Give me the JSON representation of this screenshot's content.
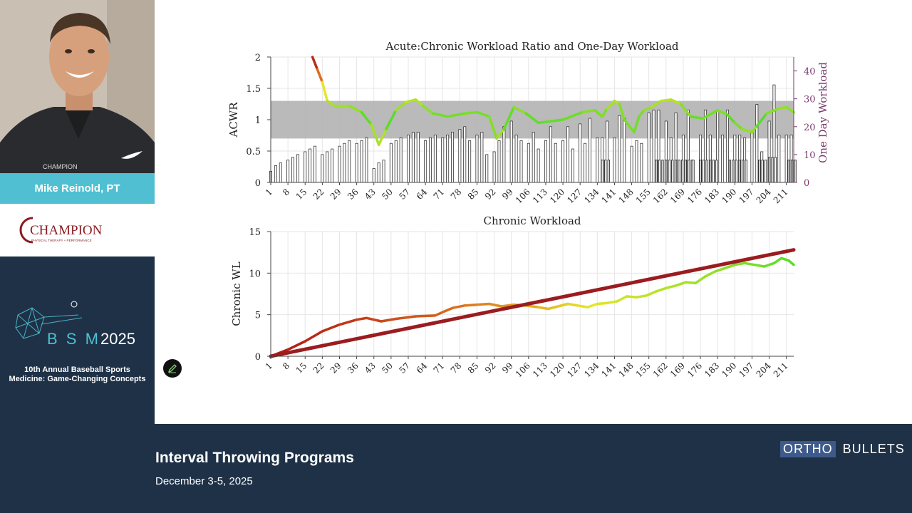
{
  "speaker": {
    "name": "Mike Reinold, PT",
    "shirt_logo": "CHAMPION"
  },
  "sponsor": {
    "name": "CHAMPION",
    "tagline": "PHYSICAL THERAPY + PERFORMANCE",
    "color": "#8b1a1f"
  },
  "event": {
    "logo_letters": "B S M",
    "logo_year": "2025",
    "description": "10th Annual Baseball Sports Medicine: Game-Changing Concepts"
  },
  "talk": {
    "title": "Interval Throwing Programs",
    "date": "December 3-5, 2025"
  },
  "brand": {
    "part1": "ORTHO",
    "part2": "BULLETS"
  },
  "edit_icon": "pencil-icon",
  "colors": {
    "footer_bg": "#1e3147",
    "name_bar": "#4fbfd1",
    "band": "#b3b3b3",
    "trend": "#9b1c1f"
  },
  "chart_data": [
    {
      "type": "line",
      "title": "Acute:Chronic Workload Ratio and One-Day Workload",
      "ylabel": "ACWR",
      "y2label": "One Day Workload",
      "ylim": [
        0,
        2
      ],
      "y_ticks": [
        "0",
        "0.5",
        "1",
        "1.5",
        "2"
      ],
      "y2lim": [
        0,
        45
      ],
      "y2_ticks": [
        "0",
        "10",
        "20",
        "30",
        "40"
      ],
      "xlim": [
        1,
        214
      ],
      "x_ticks": [
        "1",
        "8",
        "15",
        "22",
        "29",
        "36",
        "43",
        "50",
        "57",
        "64",
        "71",
        "78",
        "85",
        "92",
        "99",
        "106",
        "113",
        "120",
        "127",
        "134",
        "141",
        "148",
        "155",
        "162",
        "169",
        "176",
        "183",
        "190",
        "197",
        "204",
        "211"
      ],
      "band": [
        0.7,
        1.3
      ],
      "acwr": {
        "x": [
          18,
          20,
          22,
          24,
          27,
          33,
          38,
          42,
          45,
          48,
          52,
          56,
          60,
          63,
          67,
          73,
          80,
          85,
          90,
          93,
          96,
          100,
          105,
          110,
          120,
          128,
          133,
          136,
          138,
          141,
          143,
          145,
          149,
          151,
          153,
          156,
          160,
          164,
          168,
          172,
          177,
          183,
          187,
          190,
          193,
          197,
          199,
          203,
          208,
          211,
          214
        ],
        "y": [
          2.0,
          1.8,
          1.6,
          1.3,
          1.22,
          1.22,
          1.12,
          0.92,
          0.6,
          0.85,
          1.15,
          1.28,
          1.32,
          1.22,
          1.1,
          1.05,
          1.1,
          1.12,
          1.05,
          0.7,
          0.85,
          1.2,
          1.1,
          0.95,
          1.0,
          1.12,
          1.15,
          1.05,
          1.18,
          1.3,
          1.25,
          1.0,
          0.8,
          1.05,
          1.15,
          1.2,
          1.3,
          1.32,
          1.25,
          1.05,
          1.02,
          1.15,
          1.08,
          0.95,
          0.85,
          0.8,
          0.9,
          1.1,
          1.18,
          1.2,
          1.12
        ]
      },
      "one_day_workload": {
        "x": [
          1,
          3,
          5,
          8,
          10,
          12,
          15,
          17,
          19,
          22,
          24,
          26,
          29,
          31,
          33,
          36,
          38,
          40,
          43,
          45,
          47,
          50,
          52,
          54,
          57,
          59,
          61,
          64,
          66,
          68,
          71,
          73,
          75,
          78,
          80,
          82,
          85,
          87,
          89,
          92,
          94,
          96,
          99,
          101,
          103,
          106,
          108,
          110,
          113,
          115,
          117,
          120,
          122,
          124,
          127,
          129,
          131,
          134,
          136,
          138,
          141,
          143,
          145,
          148,
          150,
          152,
          155,
          157,
          159,
          162,
          164,
          166,
          169,
          171,
          173,
          176,
          178,
          180,
          183,
          185,
          187,
          190,
          192,
          194,
          197,
          199,
          201,
          204,
          206,
          208,
          211,
          213
        ],
        "y": [
          4,
          6,
          7,
          8,
          9,
          10,
          11,
          12,
          13,
          10,
          11,
          12,
          13,
          14,
          15,
          14,
          15,
          16,
          5,
          7,
          8,
          14,
          15,
          16,
          17,
          18,
          18,
          15,
          16,
          17,
          16,
          17,
          18,
          19,
          20,
          15,
          17,
          18,
          10,
          11,
          15,
          20,
          22,
          17,
          15,
          14,
          18,
          12,
          15,
          20,
          14,
          15,
          20,
          12,
          21,
          14,
          23,
          16,
          16,
          22,
          16,
          24,
          23,
          13,
          15,
          14,
          25,
          26,
          26,
          22,
          16,
          25,
          17,
          26,
          8,
          17,
          26,
          17,
          26,
          17,
          26,
          17,
          17,
          16,
          18,
          28,
          11,
          22,
          35,
          17,
          17,
          17
        ]
      },
      "one_day_workload_secondary": {
        "x": [
          136,
          158,
          162,
          166,
          170,
          176,
          180,
          188,
          192,
          200,
          204,
          212
        ],
        "y": [
          8,
          8,
          8,
          8,
          8,
          8,
          8,
          8,
          8,
          8,
          9,
          8
        ]
      }
    },
    {
      "type": "line",
      "title": "Chronic Workload",
      "ylabel": "Chronic WL",
      "ylim": [
        0,
        15
      ],
      "y_ticks": [
        "0",
        "5",
        "10",
        "15"
      ],
      "xlim": [
        1,
        214
      ],
      "x_ticks": [
        "1",
        "8",
        "15",
        "22",
        "29",
        "36",
        "43",
        "50",
        "57",
        "64",
        "71",
        "78",
        "85",
        "92",
        "99",
        "106",
        "113",
        "120",
        "127",
        "134",
        "141",
        "148",
        "155",
        "162",
        "169",
        "176",
        "183",
        "190",
        "197",
        "204",
        "211"
      ],
      "chronic": {
        "x": [
          1,
          8,
          15,
          22,
          29,
          36,
          40,
          46,
          52,
          60,
          68,
          71,
          75,
          80,
          85,
          90,
          95,
          100,
          105,
          110,
          114,
          118,
          122,
          126,
          130,
          134,
          138,
          142,
          146,
          150,
          154,
          158,
          162,
          166,
          170,
          174,
          178,
          182,
          186,
          190,
          194,
          198,
          202,
          206,
          209,
          212,
          214
        ],
        "y": [
          0,
          0.8,
          1.8,
          3.0,
          3.8,
          4.4,
          4.6,
          4.2,
          4.5,
          4.8,
          4.9,
          5.3,
          5.8,
          6.1,
          6.2,
          6.3,
          6.0,
          6.2,
          6.1,
          5.9,
          5.7,
          6.0,
          6.3,
          6.1,
          5.9,
          6.3,
          6.4,
          6.6,
          7.2,
          7.1,
          7.3,
          7.8,
          8.2,
          8.5,
          8.9,
          8.8,
          9.6,
          10.2,
          10.6,
          11.0,
          11.2,
          11.0,
          10.8,
          11.2,
          11.8,
          11.5,
          11.0
        ]
      },
      "trend": {
        "x": [
          1,
          214
        ],
        "y": [
          0,
          12.8
        ]
      }
    }
  ]
}
